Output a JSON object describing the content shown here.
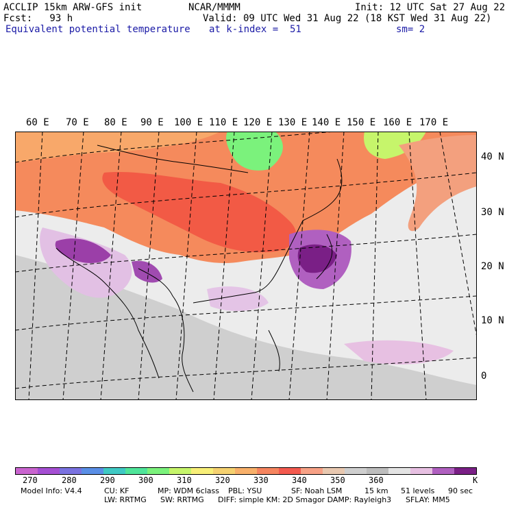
{
  "header": {
    "model": "ACCLIP 15km ARW-GFS init",
    "fcst": "Fcst:   93 h",
    "field": "Equivalent potential temperature",
    "center": "NCAR/MMMM",
    "init": "Init: 12 UTC Sat 27 Aug 22",
    "valid": "Valid: 09 UTC Wed 31 Aug 22 (18 KST Wed 31 Aug 22)",
    "level": "at k-index =  51",
    "smooth": "sm= 2"
  },
  "map": {
    "lon_labels": [
      "60 E",
      "70 E",
      "80 E",
      "90 E",
      "100 E",
      "110 E",
      "120 E",
      "130 E",
      "140 E",
      "150 E",
      "160 E",
      "170 E"
    ],
    "lat_labels": [
      "40 N",
      "30 N",
      "20 N",
      "10 N",
      "0"
    ],
    "background_color": "#efefef"
  },
  "colorbar": {
    "colors": [
      "#c964cf",
      "#a54fd3",
      "#7a72e0",
      "#5a8fe6",
      "#3fc9c4",
      "#4fe59a",
      "#7bf27c",
      "#c6f56b",
      "#f8ef78",
      "#f5d170",
      "#f8b06a",
      "#f6855f",
      "#f45a4f",
      "#f7a186",
      "#e8c8b0",
      "#cfcfcf",
      "#bdbdbd",
      "#e4e4e4",
      "#e7c0e2",
      "#b060c0",
      "#7a1f86"
    ],
    "labels": [
      "270",
      "280",
      "290",
      "300",
      "310",
      "320",
      "330",
      "340",
      "350",
      "360"
    ],
    "unit": "K"
  },
  "footer": {
    "model_info": "Model Info: V4.4",
    "cu": "CU: KF",
    "mp": "MP: WDM 6class",
    "pbl": "PBL: YSU",
    "sf": "SF: Noah LSM",
    "res": "15 km",
    "levels": "51 levels",
    "dt": "90 sec",
    "lw": "LW: RRTMG",
    "sw": "SW: RRTMG",
    "diff": "DIFF: simple KM: 2D Smagor DAMP: Rayleigh3",
    "sflay": "SFLAY: MM5"
  }
}
